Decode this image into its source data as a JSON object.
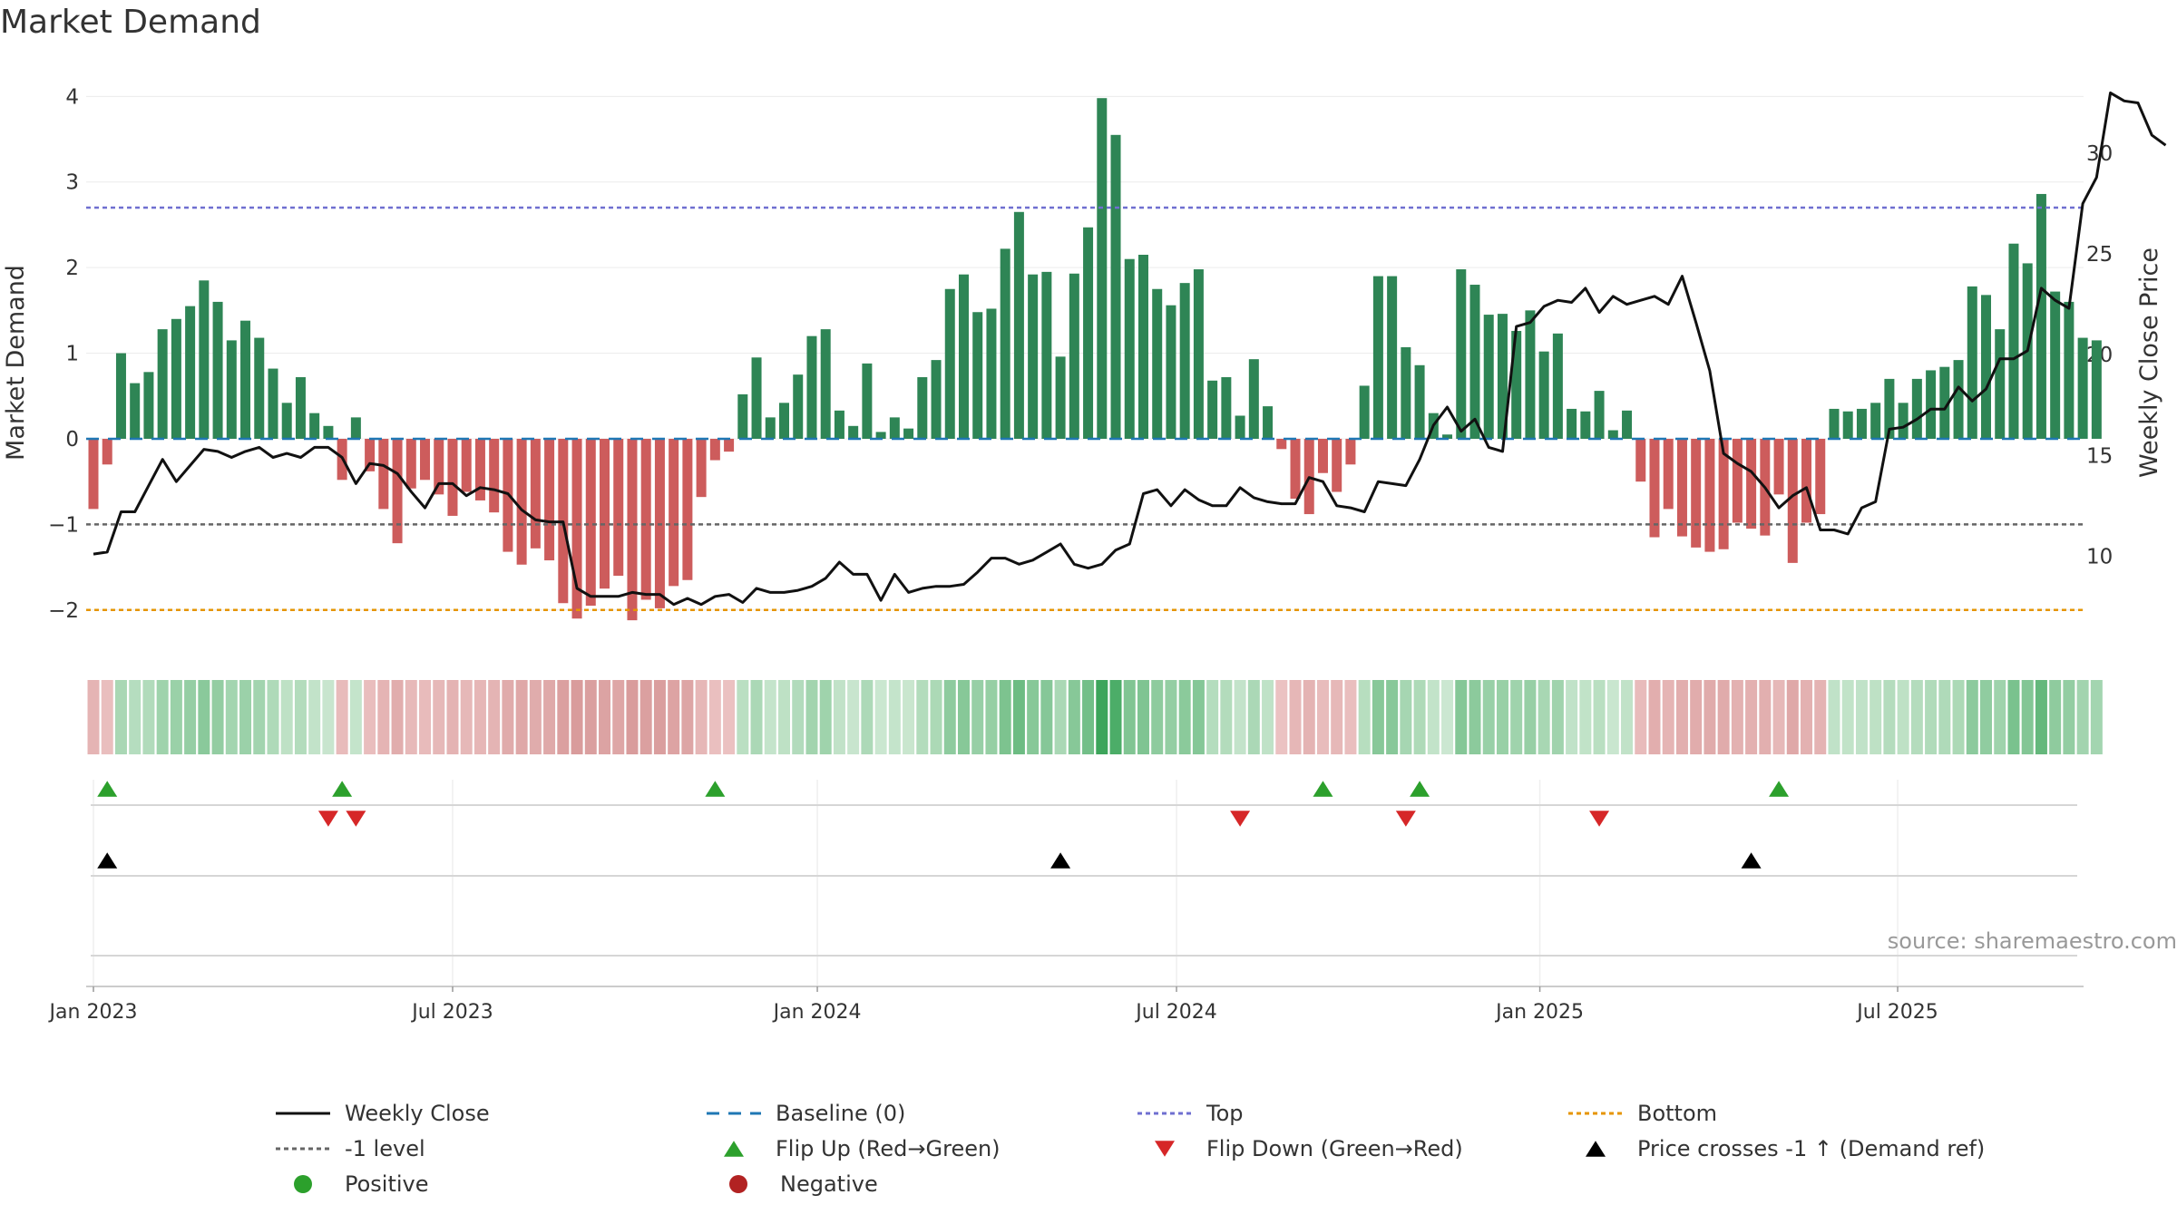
{
  "title": "Market Demand",
  "source": "source: sharemaestro.com",
  "colors": {
    "positive": "#2e8555",
    "negative": "#cd5c5c",
    "price": "#111111",
    "baseline": "#1f77b4",
    "top": "#6f6fd0",
    "bottom": "#e69500",
    "level": "#666666",
    "flip_up": "#2ca02c",
    "flip_down": "#d62728",
    "cross": "#000000"
  },
  "chart_data": {
    "type": "bar+line",
    "ylabel": "Market Demand",
    "y2label": "Weekly Close Price",
    "ylim": [
      -2.5,
      4.3
    ],
    "y2lim": [
      5.2,
      34.1
    ],
    "yticks": [
      -2,
      -1,
      0,
      1,
      2,
      3,
      4
    ],
    "y2ticks": [
      10,
      15,
      20,
      25,
      30
    ],
    "xticks": [
      {
        "label": "Jan 2023",
        "week": 0
      },
      {
        "label": "Jul 2023",
        "week": 26
      },
      {
        "label": "Jan 2024",
        "week": 52.4
      },
      {
        "label": "Jul 2024",
        "week": 78.4
      },
      {
        "label": "Jan 2025",
        "week": 104.7
      },
      {
        "label": "Jul 2025",
        "week": 130.6
      }
    ],
    "reference_lines": {
      "top": 2.7,
      "bottom": -2.0,
      "minus_one": -1.0,
      "baseline": 0
    },
    "demand": [
      -0.82,
      -0.3,
      1.0,
      0.65,
      0.78,
      1.28,
      1.4,
      1.55,
      1.85,
      1.6,
      1.15,
      1.38,
      1.18,
      0.82,
      0.42,
      0.72,
      0.3,
      0.15,
      -0.48,
      0.25,
      -0.38,
      -0.82,
      -1.22,
      -0.58,
      -0.48,
      -0.65,
      -0.9,
      -0.62,
      -0.72,
      -0.86,
      -1.32,
      -1.47,
      -1.28,
      -1.42,
      -1.92,
      -2.1,
      -1.95,
      -1.75,
      -1.6,
      -2.12,
      -1.88,
      -1.98,
      -1.72,
      -1.65,
      -0.68,
      -0.25,
      -0.15,
      0.52,
      0.95,
      0.25,
      0.42,
      0.75,
      1.2,
      1.28,
      0.33,
      0.15,
      0.88,
      0.08,
      0.25,
      0.12,
      0.72,
      0.92,
      1.75,
      1.92,
      1.48,
      1.52,
      2.22,
      2.65,
      1.92,
      1.95,
      0.96,
      1.93,
      2.47,
      3.98,
      3.55,
      2.1,
      2.15,
      1.75,
      1.56,
      1.82,
      1.98,
      0.68,
      0.72,
      0.27,
      0.93,
      0.38,
      -0.12,
      -0.7,
      -0.88,
      -0.4,
      -0.62,
      -0.3,
      0.62,
      1.9,
      1.9,
      1.07,
      0.86,
      0.3,
      0.05,
      1.98,
      1.8,
      1.45,
      1.46,
      1.26,
      1.5,
      1.02,
      1.23,
      0.35,
      0.32,
      0.56,
      0.1,
      0.33,
      -0.5,
      -1.15,
      -0.82,
      -1.14,
      -1.27,
      -1.32,
      -1.29,
      -0.98,
      -1.05,
      -1.13,
      -0.65,
      -1.45,
      -0.98,
      -0.88,
      0.35,
      0.32,
      0.35,
      0.42,
      0.7,
      0.42,
      0.7,
      0.8,
      0.84,
      0.92,
      1.78,
      1.68,
      1.28,
      2.28,
      2.05,
      2.86,
      1.72,
      1.6,
      1.18,
      1.15
    ],
    "price": [
      10.1,
      10.2,
      12.2,
      12.2,
      13.5,
      14.8,
      13.7,
      14.5,
      15.3,
      15.2,
      14.9,
      15.2,
      15.4,
      14.9,
      15.1,
      14.9,
      15.4,
      15.4,
      14.9,
      13.6,
      14.6,
      14.5,
      14.1,
      13.2,
      12.4,
      13.6,
      13.6,
      13.0,
      13.4,
      13.3,
      13.1,
      12.3,
      11.8,
      11.7,
      11.7,
      8.4,
      8.0,
      8.0,
      8.0,
      8.2,
      8.1,
      8.1,
      7.6,
      7.9,
      7.6,
      8.0,
      8.1,
      7.7,
      8.4,
      8.2,
      8.2,
      8.3,
      8.5,
      8.9,
      9.7,
      9.1,
      9.1,
      7.8,
      9.1,
      8.2,
      8.4,
      8.5,
      8.5,
      8.6,
      9.2,
      9.9,
      9.9,
      9.6,
      9.8,
      10.2,
      10.6,
      9.6,
      9.4,
      9.6,
      10.3,
      10.6,
      13.1,
      13.3,
      12.5,
      13.3,
      12.8,
      12.5,
      12.5,
      13.4,
      12.9,
      12.7,
      12.6,
      12.6,
      13.9,
      13.7,
      12.5,
      12.4,
      12.2,
      13.7,
      13.6,
      13.5,
      14.8,
      16.5,
      17.4,
      16.2,
      16.8,
      15.4,
      15.2,
      21.4,
      21.6,
      22.4,
      22.7,
      22.6,
      23.3,
      22.1,
      22.9,
      22.5,
      22.7,
      22.9,
      22.5,
      23.9,
      21.6,
      19.2,
      15.1,
      14.6,
      14.2,
      13.4,
      12.4,
      13.0,
      13.4,
      11.3,
      11.3,
      11.1,
      12.4,
      12.7,
      16.3,
      16.4,
      16.8,
      17.3,
      17.3,
      18.4,
      17.7,
      18.3,
      19.8,
      19.8,
      20.2,
      23.3,
      22.7,
      22.3,
      27.5,
      28.8,
      33.0,
      32.6,
      32.5,
      30.9,
      30.4
    ],
    "flip_up_weeks": [
      1,
      18,
      45,
      89,
      96,
      122
    ],
    "flip_down_weeks": [
      17,
      19,
      83,
      95,
      109
    ],
    "price_cross_weeks": [
      1,
      70,
      120
    ]
  },
  "legend": [
    {
      "label": "Weekly Close",
      "symbol": "line-solid",
      "color": "#111111"
    },
    {
      "label": "Baseline (0)",
      "symbol": "line-dash",
      "color": "#1f77b4"
    },
    {
      "label": "Top",
      "symbol": "line-dot",
      "color": "#6f6fd0"
    },
    {
      "label": "Bottom",
      "symbol": "line-dot",
      "color": "#e69500"
    },
    {
      "label": "-1 level",
      "symbol": "line-dot",
      "color": "#666666"
    },
    {
      "label": "Flip Up (Red→Green)",
      "symbol": "tri-up",
      "color": "#2ca02c"
    },
    {
      "label": "Flip Down (Green→Red)",
      "symbol": "tri-down",
      "color": "#d62728"
    },
    {
      "label": "Price crosses -1 ↑ (Demand ref)",
      "symbol": "tri-up",
      "color": "#000000"
    },
    {
      "label": "Positive",
      "symbol": "dot",
      "color": "#2ca02c"
    },
    {
      "label": "Negative",
      "symbol": "dot",
      "color": "#b22222"
    }
  ]
}
